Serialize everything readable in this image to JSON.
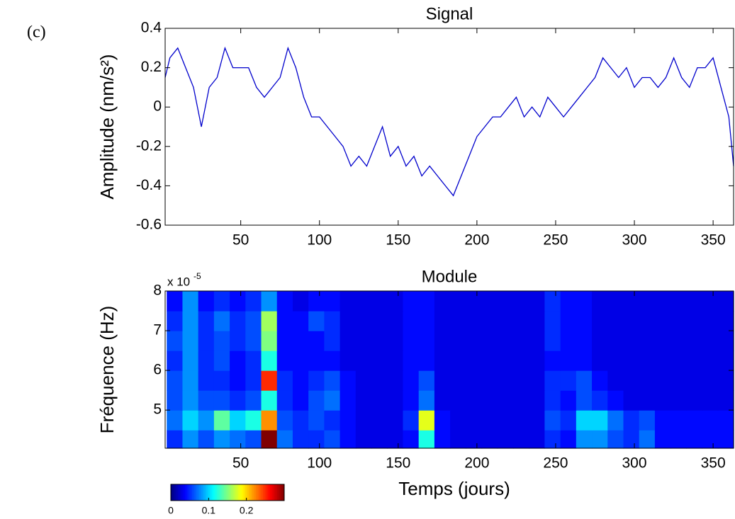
{
  "panel_label": "(c)",
  "chart_data": [
    {
      "type": "line",
      "title": "Signal",
      "ylabel": "Amplitude (nm/s²)",
      "color": "#0000cc",
      "x": [
        2,
        5,
        10,
        15,
        20,
        25,
        30,
        35,
        40,
        45,
        50,
        55,
        60,
        65,
        70,
        75,
        80,
        85,
        90,
        95,
        100,
        105,
        110,
        115,
        120,
        125,
        130,
        135,
        140,
        145,
        150,
        155,
        160,
        165,
        170,
        175,
        180,
        185,
        190,
        195,
        200,
        205,
        210,
        215,
        220,
        225,
        230,
        235,
        240,
        245,
        250,
        255,
        260,
        265,
        270,
        275,
        280,
        285,
        290,
        295,
        300,
        305,
        310,
        315,
        320,
        325,
        330,
        335,
        340,
        345,
        350,
        355,
        360,
        363
      ],
      "values": [
        0.15,
        0.25,
        0.3,
        0.2,
        0.1,
        -0.1,
        0.1,
        0.15,
        0.3,
        0.2,
        0.2,
        0.2,
        0.1,
        0.05,
        0.1,
        0.15,
        0.3,
        0.2,
        0.05,
        -0.05,
        -0.05,
        -0.1,
        -0.15,
        -0.2,
        -0.3,
        -0.25,
        -0.3,
        -0.2,
        -0.1,
        -0.25,
        -0.2,
        -0.3,
        -0.25,
        -0.35,
        -0.3,
        -0.35,
        -0.4,
        -0.45,
        -0.35,
        -0.25,
        -0.15,
        -0.1,
        -0.05,
        -0.05,
        0.0,
        0.05,
        -0.05,
        0.0,
        -0.05,
        0.05,
        0.0,
        -0.05,
        0.0,
        0.05,
        0.1,
        0.15,
        0.25,
        0.2,
        0.15,
        0.2,
        0.1,
        0.15,
        0.15,
        0.1,
        0.15,
        0.25,
        0.15,
        0.1,
        0.2,
        0.2,
        0.25,
        0.1,
        -0.05,
        -0.3
      ],
      "xlim": [
        2,
        363
      ],
      "xticks": [
        50,
        100,
        150,
        200,
        250,
        300,
        350
      ],
      "ylim": [
        -0.6,
        0.4
      ],
      "yticks": [
        -0.6,
        -0.4,
        -0.2,
        0,
        0.2,
        0.4
      ]
    },
    {
      "type": "heatmap",
      "title": "Module",
      "xlabel": "Temps (jours)",
      "ylabel": "Fréquence (Hz)",
      "y_scale_label": "x 10",
      "y_scale_exponent": "-5",
      "xlim": [
        2,
        363
      ],
      "xticks": [
        50,
        100,
        150,
        200,
        250,
        300,
        350
      ],
      "ylim": [
        4.04,
        8
      ],
      "yticks": [
        5,
        6,
        7,
        8
      ],
      "xbins": [
        3,
        13,
        23,
        33,
        43,
        53,
        63,
        73,
        83,
        93,
        103,
        113,
        123,
        133,
        143,
        153,
        163,
        173,
        183,
        193,
        203,
        213,
        223,
        233,
        243,
        253,
        263,
        273,
        283,
        293,
        303,
        313,
        323,
        333,
        343,
        353,
        363
      ],
      "ybins": [
        4.04,
        4.5,
        5,
        5.5,
        6,
        6.5,
        7,
        7.5,
        8
      ],
      "z": [
        [
          0.05,
          0.08,
          0.06,
          0.08,
          0.07,
          0.06,
          0.3,
          0.07,
          0.05,
          0.05,
          0.06,
          0.04,
          0.03,
          0.03,
          0.03,
          0.04,
          0.12,
          0.04,
          0.03,
          0.03,
          0.03,
          0.03,
          0.03,
          0.03,
          0.05,
          0.04,
          0.08,
          0.08,
          0.06,
          0.05,
          0.07,
          0.04,
          0.04,
          0.04,
          0.04,
          0.04
        ],
        [
          0.07,
          0.1,
          0.08,
          0.14,
          0.1,
          0.12,
          0.22,
          0.06,
          0.05,
          0.06,
          0.05,
          0.04,
          0.03,
          0.03,
          0.03,
          0.05,
          0.18,
          0.04,
          0.03,
          0.03,
          0.03,
          0.03,
          0.03,
          0.03,
          0.06,
          0.05,
          0.1,
          0.1,
          0.07,
          0.05,
          0.06,
          0.04,
          0.04,
          0.04,
          0.04,
          0.04
        ],
        [
          0.06,
          0.08,
          0.06,
          0.06,
          0.05,
          0.06,
          0.12,
          0.05,
          0.04,
          0.06,
          0.07,
          0.04,
          0.03,
          0.03,
          0.03,
          0.04,
          0.07,
          0.03,
          0.03,
          0.03,
          0.03,
          0.03,
          0.03,
          0.03,
          0.05,
          0.04,
          0.06,
          0.05,
          0.04,
          0.03,
          0.03,
          0.03,
          0.03,
          0.03,
          0.03,
          0.03
        ],
        [
          0.06,
          0.08,
          0.05,
          0.05,
          0.04,
          0.05,
          0.25,
          0.05,
          0.04,
          0.05,
          0.06,
          0.04,
          0.03,
          0.03,
          0.03,
          0.04,
          0.06,
          0.03,
          0.03,
          0.03,
          0.03,
          0.03,
          0.03,
          0.03,
          0.05,
          0.05,
          0.06,
          0.04,
          0.03,
          0.03,
          0.03,
          0.03,
          0.03,
          0.03,
          0.03,
          0.03
        ],
        [
          0.05,
          0.08,
          0.05,
          0.06,
          0.04,
          0.05,
          0.12,
          0.04,
          0.04,
          0.04,
          0.04,
          0.03,
          0.03,
          0.03,
          0.03,
          0.04,
          0.04,
          0.03,
          0.03,
          0.03,
          0.03,
          0.03,
          0.03,
          0.03,
          0.04,
          0.04,
          0.04,
          0.03,
          0.03,
          0.03,
          0.03,
          0.03,
          0.03,
          0.03,
          0.03,
          0.03
        ],
        [
          0.06,
          0.08,
          0.05,
          0.06,
          0.05,
          0.06,
          0.15,
          0.04,
          0.04,
          0.04,
          0.05,
          0.03,
          0.03,
          0.03,
          0.03,
          0.04,
          0.04,
          0.03,
          0.03,
          0.03,
          0.03,
          0.03,
          0.03,
          0.03,
          0.05,
          0.04,
          0.04,
          0.03,
          0.03,
          0.03,
          0.03,
          0.03,
          0.03,
          0.03,
          0.03,
          0.03
        ],
        [
          0.05,
          0.08,
          0.05,
          0.07,
          0.05,
          0.06,
          0.16,
          0.04,
          0.04,
          0.06,
          0.05,
          0.03,
          0.03,
          0.03,
          0.03,
          0.04,
          0.04,
          0.03,
          0.03,
          0.03,
          0.03,
          0.03,
          0.03,
          0.03,
          0.05,
          0.04,
          0.04,
          0.03,
          0.03,
          0.03,
          0.03,
          0.03,
          0.03,
          0.03,
          0.03,
          0.03
        ],
        [
          0.04,
          0.08,
          0.04,
          0.05,
          0.04,
          0.05,
          0.08,
          0.04,
          0.03,
          0.04,
          0.04,
          0.03,
          0.03,
          0.03,
          0.03,
          0.04,
          0.04,
          0.03,
          0.03,
          0.03,
          0.03,
          0.03,
          0.03,
          0.03,
          0.05,
          0.04,
          0.04,
          0.03,
          0.03,
          0.03,
          0.03,
          0.03,
          0.03,
          0.03,
          0.03,
          0.03
        ]
      ],
      "colorbar": {
        "colormap": "jet",
        "lim": [
          0,
          0.3
        ],
        "ticks": [
          0,
          0.1,
          0.2
        ]
      }
    }
  ]
}
